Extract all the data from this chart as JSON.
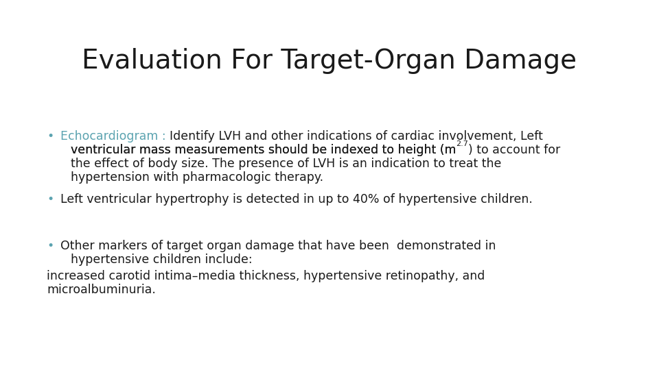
{
  "title": "Evaluation For Target-Organ Damage",
  "title_fontsize": 28,
  "title_color": "#1a1a1a",
  "background_color": "#ffffff",
  "text_color": "#1a1a1a",
  "bullet_color": "#5ba3b0",
  "bullet_char": "•",
  "body_fontsize": 12.5,
  "sup_fontsize": 8,
  "bullet1_label": "Echocardiogram : ",
  "b1_line1_rest": "Identify LVH and other indications of cardiac involvement, Left",
  "b1_line2": "ventricular mass measurements should be indexed to height (m",
  "b1_sup": "2.7",
  "b1_line2_end": ") to account for",
  "b1_line3": "the effect of body size. The presence of LVH is an indication to treat the",
  "b1_line4": "hypertension with pharmacologic therapy.",
  "bullet2": "Left ventricular hypertrophy is detected in up to 40% of hypertensive children.",
  "bullet3_line1": "Other markers of target organ damage that have been  demonstrated in",
  "bullet3_line2": "hypertensive children include:",
  "extra_line1": "increased carotid intima–media thickness, hypertensive retinopathy, and",
  "extra_line2": "microalbuminuria."
}
